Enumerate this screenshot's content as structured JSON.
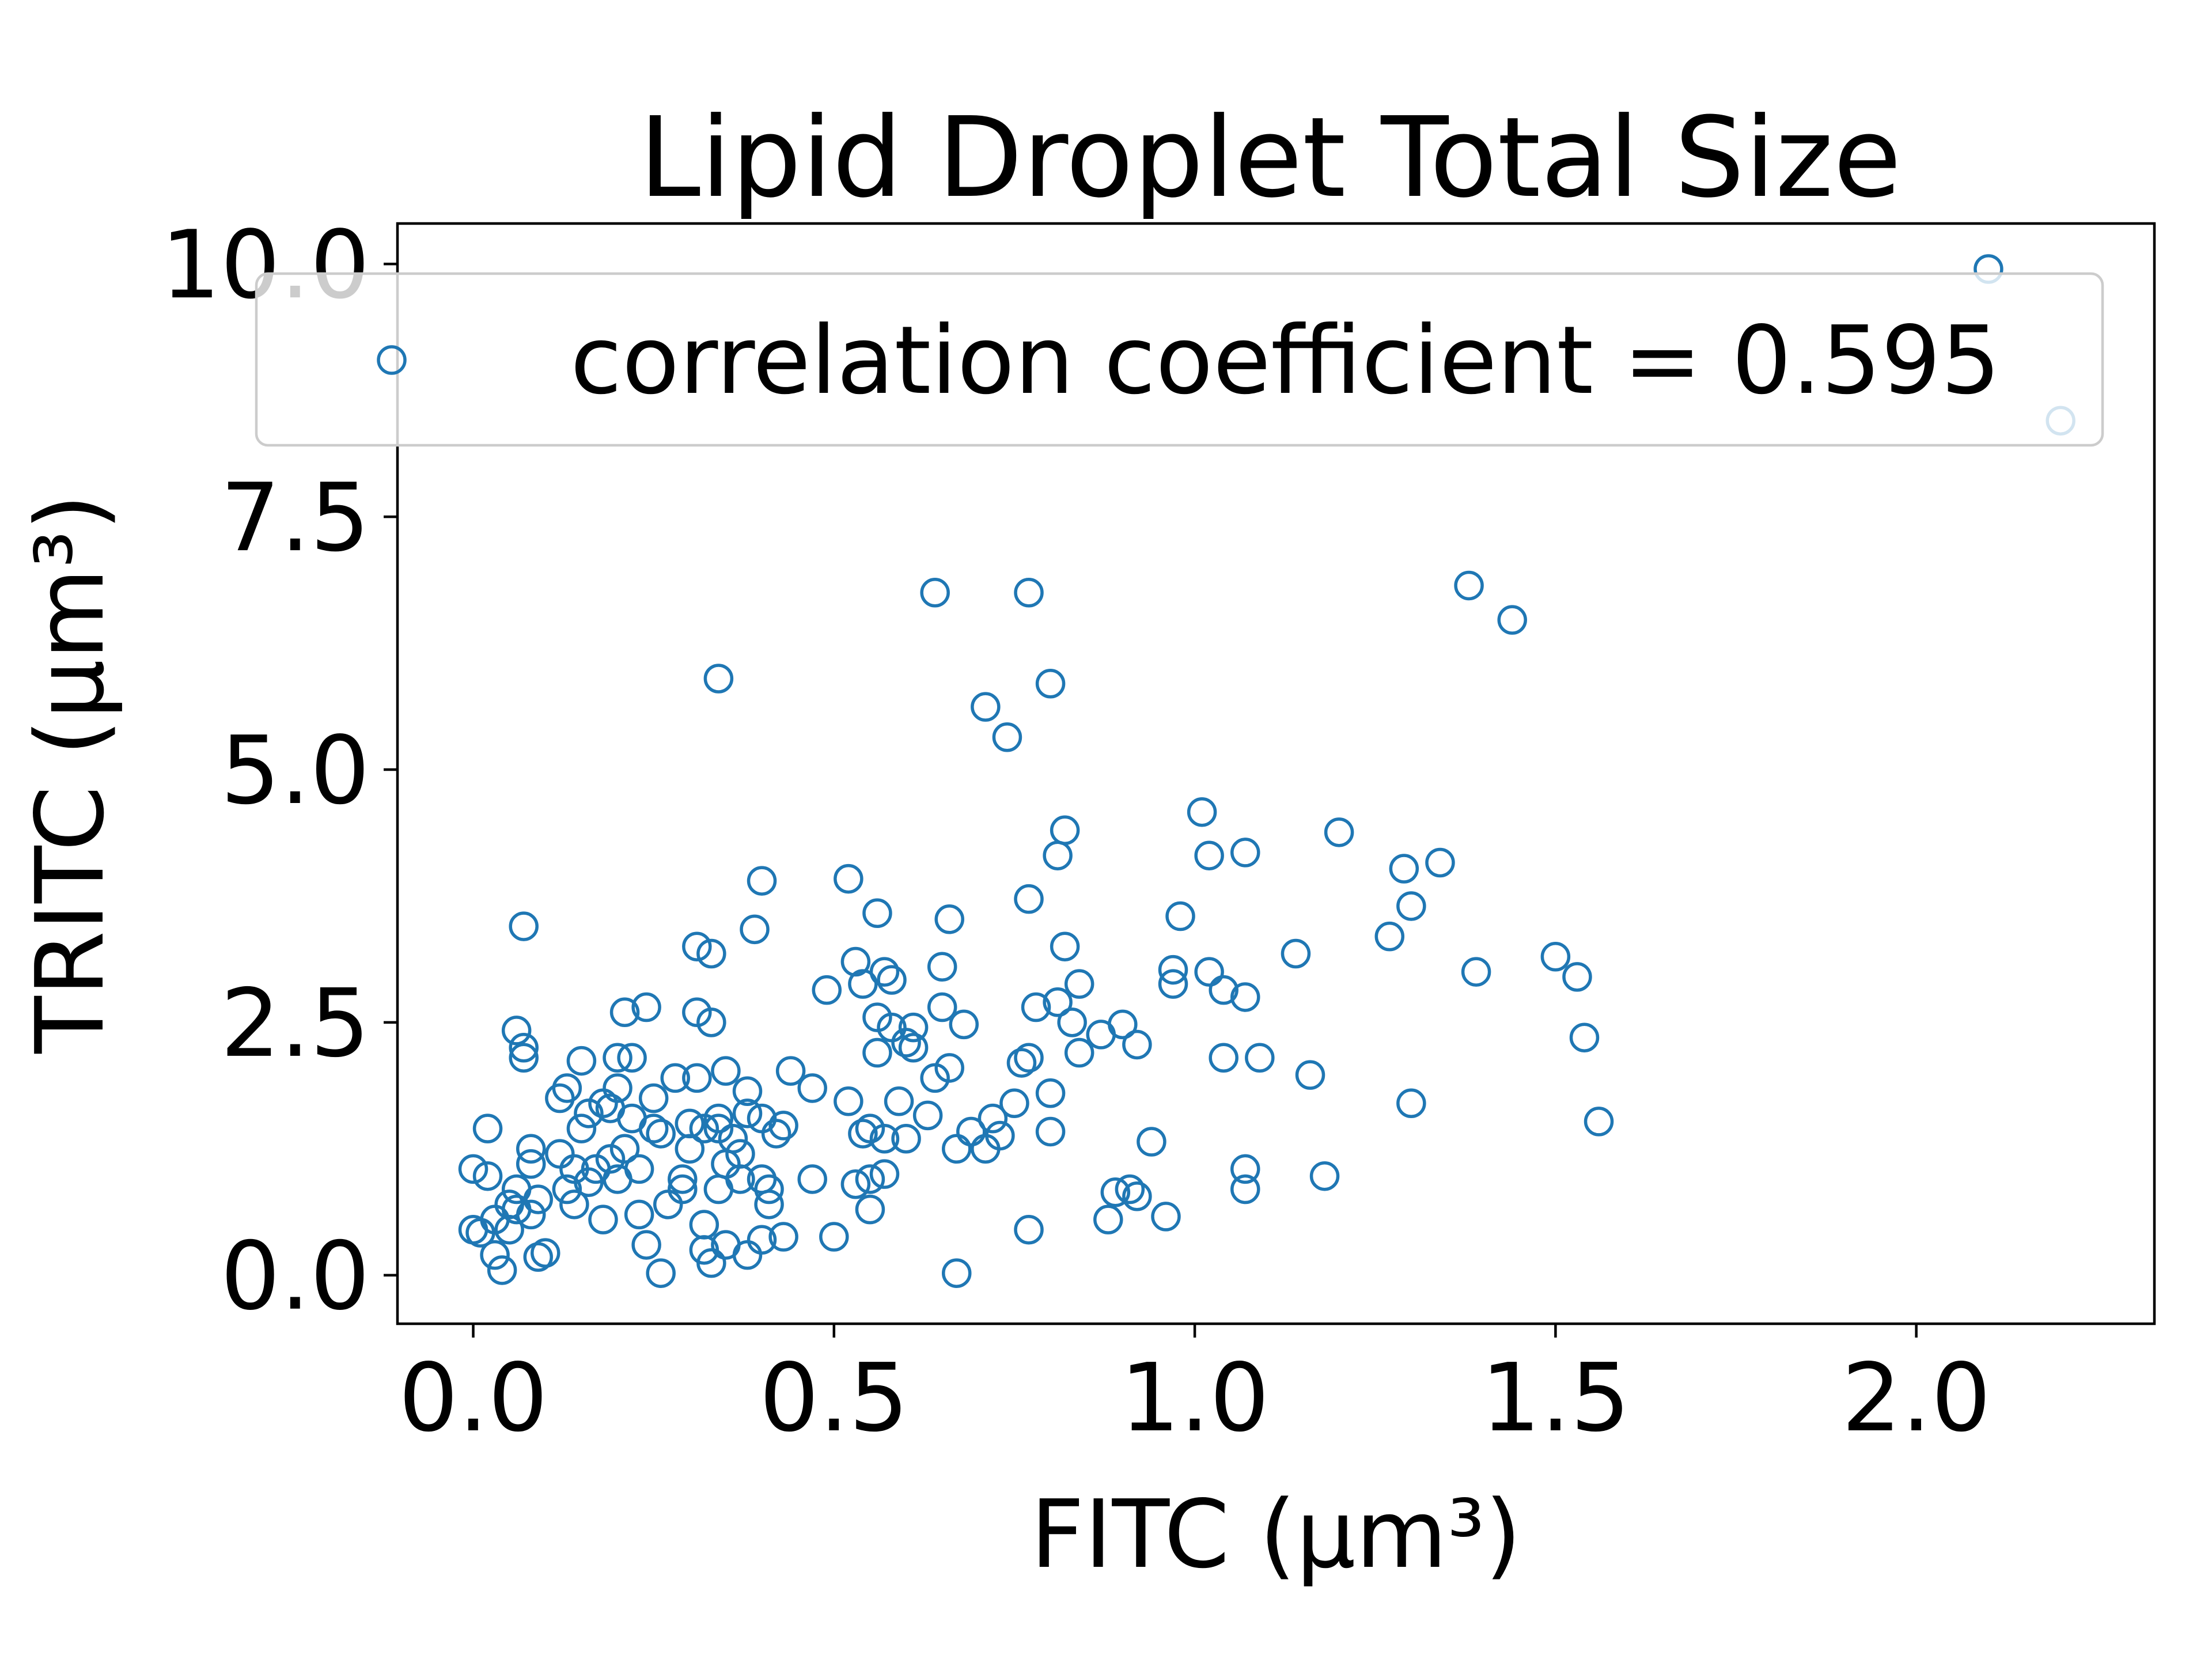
{
  "chart_data": {
    "type": "scatter",
    "title": "Lipid Droplet Total Size",
    "xlabel": "FITC (μm³)",
    "ylabel": "TRITC (μm³)",
    "xlim": [
      -0.105,
      2.33
    ],
    "ylim": [
      -0.48,
      10.4
    ],
    "xticks": [
      0.0,
      0.5,
      1.0,
      1.5,
      2.0
    ],
    "xtick_labels": [
      "0.0",
      "0.5",
      "1.0",
      "1.5",
      "2.0"
    ],
    "yticks": [
      0.0,
      2.5,
      5.0,
      7.5,
      10.0
    ],
    "ytick_labels": [
      "0.0",
      "2.5",
      "5.0",
      "7.5",
      "10.0"
    ],
    "grid": false,
    "legend": {
      "position": "upper-right",
      "label": "correlation coefficient = 0.595"
    },
    "marker": {
      "style": "open-circle",
      "color": "#1f77b4"
    },
    "series": [
      {
        "name": "correlation coefficient = 0.595",
        "points": [
          [
            0.0,
            1.05
          ],
          [
            0.0,
            0.45
          ],
          [
            0.01,
            0.42
          ],
          [
            0.02,
            1.45
          ],
          [
            0.02,
            0.98
          ],
          [
            0.03,
            0.2
          ],
          [
            0.03,
            0.55
          ],
          [
            0.04,
            0.05
          ],
          [
            0.05,
            0.45
          ],
          [
            0.05,
            0.7
          ],
          [
            0.06,
            0.85
          ],
          [
            0.06,
            0.65
          ],
          [
            0.06,
            2.42
          ],
          [
            0.07,
            2.25
          ],
          [
            0.07,
            2.15
          ],
          [
            0.07,
            3.45
          ],
          [
            0.08,
            1.1
          ],
          [
            0.08,
            1.25
          ],
          [
            0.08,
            0.6
          ],
          [
            0.09,
            0.75
          ],
          [
            0.09,
            0.18
          ],
          [
            0.1,
            0.22
          ],
          [
            0.12,
            1.75
          ],
          [
            0.12,
            1.2
          ],
          [
            0.13,
            1.85
          ],
          [
            0.13,
            0.85
          ],
          [
            0.14,
            0.7
          ],
          [
            0.14,
            1.05
          ],
          [
            0.15,
            2.12
          ],
          [
            0.15,
            1.45
          ],
          [
            0.16,
            0.92
          ],
          [
            0.16,
            1.6
          ],
          [
            0.17,
            1.05
          ],
          [
            0.18,
            1.7
          ],
          [
            0.18,
            0.55
          ],
          [
            0.19,
            1.15
          ],
          [
            0.19,
            1.65
          ],
          [
            0.2,
            2.15
          ],
          [
            0.2,
            0.95
          ],
          [
            0.2,
            1.85
          ],
          [
            0.21,
            2.6
          ],
          [
            0.21,
            1.25
          ],
          [
            0.22,
            1.55
          ],
          [
            0.22,
            2.15
          ],
          [
            0.23,
            0.6
          ],
          [
            0.23,
            1.05
          ],
          [
            0.24,
            2.65
          ],
          [
            0.24,
            0.3
          ],
          [
            0.25,
            1.45
          ],
          [
            0.25,
            1.75
          ],
          [
            0.26,
            0.02
          ],
          [
            0.26,
            1.4
          ],
          [
            0.27,
            0.7
          ],
          [
            0.28,
            1.95
          ],
          [
            0.29,
            0.95
          ],
          [
            0.29,
            0.85
          ],
          [
            0.3,
            1.25
          ],
          [
            0.3,
            1.5
          ],
          [
            0.31,
            3.25
          ],
          [
            0.31,
            2.6
          ],
          [
            0.31,
            1.95
          ],
          [
            0.32,
            0.5
          ],
          [
            0.32,
            0.25
          ],
          [
            0.32,
            1.45
          ],
          [
            0.33,
            3.18
          ],
          [
            0.33,
            2.5
          ],
          [
            0.33,
            0.12
          ],
          [
            0.34,
            1.45
          ],
          [
            0.34,
            0.85
          ],
          [
            0.34,
            1.55
          ],
          [
            0.35,
            0.3
          ],
          [
            0.35,
            2.02
          ],
          [
            0.35,
            1.1
          ],
          [
            0.34,
            5.9
          ],
          [
            0.36,
            1.35
          ],
          [
            0.37,
            1.2
          ],
          [
            0.37,
            0.95
          ],
          [
            0.38,
            0.2
          ],
          [
            0.38,
            1.82
          ],
          [
            0.38,
            1.6
          ],
          [
            0.39,
            3.42
          ],
          [
            0.4,
            3.9
          ],
          [
            0.4,
            1.55
          ],
          [
            0.4,
            0.95
          ],
          [
            0.4,
            0.35
          ],
          [
            0.41,
            0.7
          ],
          [
            0.41,
            0.85
          ],
          [
            0.42,
            1.4
          ],
          [
            0.43,
            1.48
          ],
          [
            0.43,
            0.38
          ],
          [
            0.44,
            2.02
          ],
          [
            0.47,
            1.85
          ],
          [
            0.47,
            0.95
          ],
          [
            0.49,
            2.82
          ],
          [
            0.5,
            0.38
          ],
          [
            0.52,
            3.92
          ],
          [
            0.52,
            1.72
          ],
          [
            0.53,
            3.1
          ],
          [
            0.53,
            0.9
          ],
          [
            0.54,
            1.4
          ],
          [
            0.54,
            2.88
          ],
          [
            0.55,
            0.95
          ],
          [
            0.55,
            1.45
          ],
          [
            0.55,
            0.65
          ],
          [
            0.56,
            3.58
          ],
          [
            0.56,
            2.2
          ],
          [
            0.56,
            2.55
          ],
          [
            0.57,
            3.0
          ],
          [
            0.57,
            1.35
          ],
          [
            0.57,
            1.0
          ],
          [
            0.58,
            2.92
          ],
          [
            0.58,
            2.45
          ],
          [
            0.59,
            1.72
          ],
          [
            0.6,
            2.3
          ],
          [
            0.6,
            1.35
          ],
          [
            0.61,
            2.45
          ],
          [
            0.61,
            2.25
          ],
          [
            0.63,
            1.58
          ],
          [
            0.64,
            6.75
          ],
          [
            0.64,
            1.95
          ],
          [
            0.65,
            2.65
          ],
          [
            0.65,
            3.05
          ],
          [
            0.66,
            3.52
          ],
          [
            0.66,
            2.05
          ],
          [
            0.67,
            1.25
          ],
          [
            0.67,
            0.02
          ],
          [
            0.68,
            2.48
          ],
          [
            0.69,
            1.42
          ],
          [
            0.71,
            5.62
          ],
          [
            0.71,
            1.25
          ],
          [
            0.72,
            1.55
          ],
          [
            0.73,
            1.38
          ],
          [
            0.74,
            5.32
          ],
          [
            0.75,
            1.7
          ],
          [
            0.76,
            2.1
          ],
          [
            0.77,
            6.75
          ],
          [
            0.77,
            3.72
          ],
          [
            0.77,
            2.15
          ],
          [
            0.77,
            0.45
          ],
          [
            0.78,
            2.65
          ],
          [
            0.8,
            5.85
          ],
          [
            0.8,
            1.8
          ],
          [
            0.8,
            1.42
          ],
          [
            0.81,
            4.15
          ],
          [
            0.81,
            2.7
          ],
          [
            0.82,
            4.4
          ],
          [
            0.82,
            3.25
          ],
          [
            0.83,
            2.5
          ],
          [
            0.84,
            2.88
          ],
          [
            0.84,
            2.2
          ],
          [
            0.87,
            2.38
          ],
          [
            0.88,
            0.55
          ],
          [
            0.89,
            0.82
          ],
          [
            0.9,
            2.48
          ],
          [
            0.91,
            0.85
          ],
          [
            0.92,
            2.28
          ],
          [
            0.92,
            0.78
          ],
          [
            0.94,
            1.32
          ],
          [
            0.96,
            0.58
          ],
          [
            0.97,
            3.02
          ],
          [
            0.97,
            2.88
          ],
          [
            0.98,
            3.55
          ],
          [
            1.01,
            4.58
          ],
          [
            1.02,
            3.0
          ],
          [
            1.02,
            4.15
          ],
          [
            1.04,
            2.82
          ],
          [
            1.04,
            2.15
          ],
          [
            1.07,
            4.18
          ],
          [
            1.07,
            2.75
          ],
          [
            1.07,
            1.05
          ],
          [
            1.07,
            0.85
          ],
          [
            1.09,
            2.15
          ],
          [
            1.14,
            3.18
          ],
          [
            1.16,
            1.98
          ],
          [
            1.18,
            0.98
          ],
          [
            1.2,
            4.38
          ],
          [
            1.27,
            3.35
          ],
          [
            1.29,
            4.02
          ],
          [
            1.3,
            3.65
          ],
          [
            1.3,
            1.7
          ],
          [
            1.34,
            4.08
          ],
          [
            1.38,
            6.82
          ],
          [
            1.39,
            3.0
          ],
          [
            1.44,
            6.48
          ],
          [
            1.5,
            3.15
          ],
          [
            1.53,
            2.95
          ],
          [
            1.54,
            2.35
          ],
          [
            1.56,
            1.52
          ],
          [
            2.1,
            9.95
          ],
          [
            2.2,
            8.45
          ]
        ]
      }
    ]
  }
}
